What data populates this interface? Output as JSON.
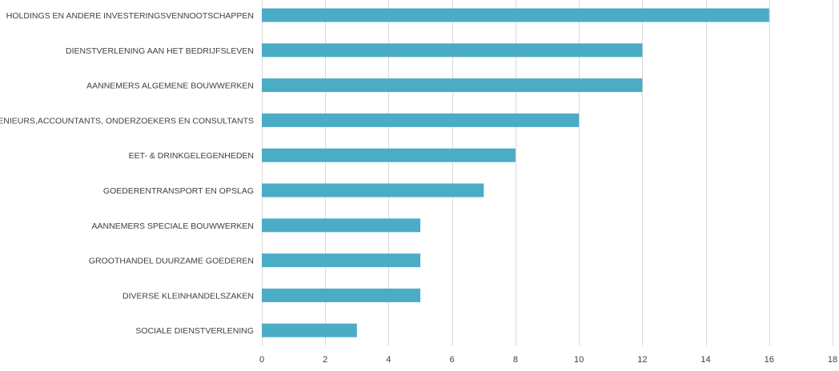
{
  "chart_data": {
    "type": "bar",
    "orientation": "horizontal",
    "title": "",
    "xlabel": "",
    "ylabel": "",
    "categories": [
      "HOLDINGS EN ANDERE INVESTERINGSVENNOOTSCHAPPEN",
      "DIENSTVERLENING AAN HET BEDRIJFSLEVEN",
      "AANNEMERS ALGEMENE BOUWWERKEN",
      "INGENIEURS,ACCOUNTANTS, ONDERZOEKERS EN CONSULTANTS",
      "EET- & DRINKGELEGENHEDEN",
      "GOEDERENTRANSPORT EN OPSLAG",
      "AANNEMERS SPECIALE BOUWWERKEN",
      "GROOTHANDEL DUURZAME GOEDEREN",
      "DIVERSE KLEINHANDELSZAKEN",
      "SOCIALE DIENSTVERLENING"
    ],
    "values": [
      16,
      12,
      12,
      10,
      8,
      7,
      5,
      5,
      5,
      3
    ],
    "xlim": [
      0,
      18
    ],
    "xticks": [
      0,
      2,
      4,
      6,
      8,
      10,
      12,
      14,
      16,
      18
    ],
    "grid": true,
    "legend": "none",
    "bar_color": "#4bacc6",
    "grid_color": "#d9d9d9",
    "label_color": "#404040"
  }
}
